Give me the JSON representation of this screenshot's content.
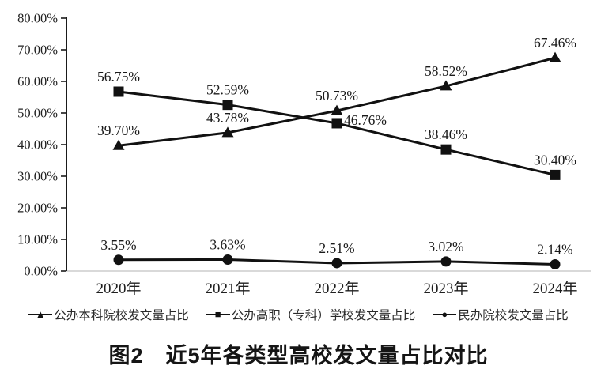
{
  "figure": {
    "caption": "图2　近5年各类型高校发文量占比对比"
  },
  "legend": {
    "items": [
      {
        "marker": "▲",
        "label": "公办本科院校发文量占比"
      },
      {
        "marker": "■",
        "label": "公办高职（专科）学校发文量占比"
      },
      {
        "marker": "●",
        "label": "民办院校发文量占比"
      }
    ]
  },
  "chart_data": {
    "type": "line",
    "title": "图2　近5年各类型高校发文量占比对比",
    "categories": [
      "2020年",
      "2021年",
      "2022年",
      "2023年",
      "2024年"
    ],
    "series": [
      {
        "name": "公办本科院校发文量占比",
        "marker": "triangle",
        "values": [
          39.7,
          43.78,
          50.73,
          58.52,
          67.46
        ],
        "labels": [
          "39.70%",
          "43.78%",
          "50.73%",
          "58.52%",
          "67.46%"
        ]
      },
      {
        "name": "公办高职（专科）学校发文量占比",
        "marker": "square",
        "values": [
          56.75,
          52.59,
          46.76,
          38.46,
          30.4
        ],
        "labels": [
          "56.75%",
          "52.59%",
          "46.76%",
          "38.46%",
          "30.40%"
        ],
        "label_offsets": {
          "2": [
            36,
            2
          ]
        }
      },
      {
        "name": "民办院校发文量占比",
        "marker": "circle",
        "values": [
          3.55,
          3.63,
          2.51,
          3.02,
          2.14
        ],
        "labels": [
          "3.55%",
          "3.63%",
          "2.51%",
          "3.02%",
          "2.14%"
        ]
      }
    ],
    "xlabel": "",
    "ylabel": "",
    "ylim": [
      0,
      80
    ],
    "ytick_labels": [
      "0.00%",
      "10.00%",
      "20.00%",
      "30.00%",
      "40.00%",
      "50.00%",
      "60.00%",
      "70.00%",
      "80.00%"
    ],
    "grid": false,
    "legend_position": "bottom",
    "line_color": "#111111",
    "axis_color": "#1a1a1a",
    "baseline_color": "#d9d9d9"
  }
}
